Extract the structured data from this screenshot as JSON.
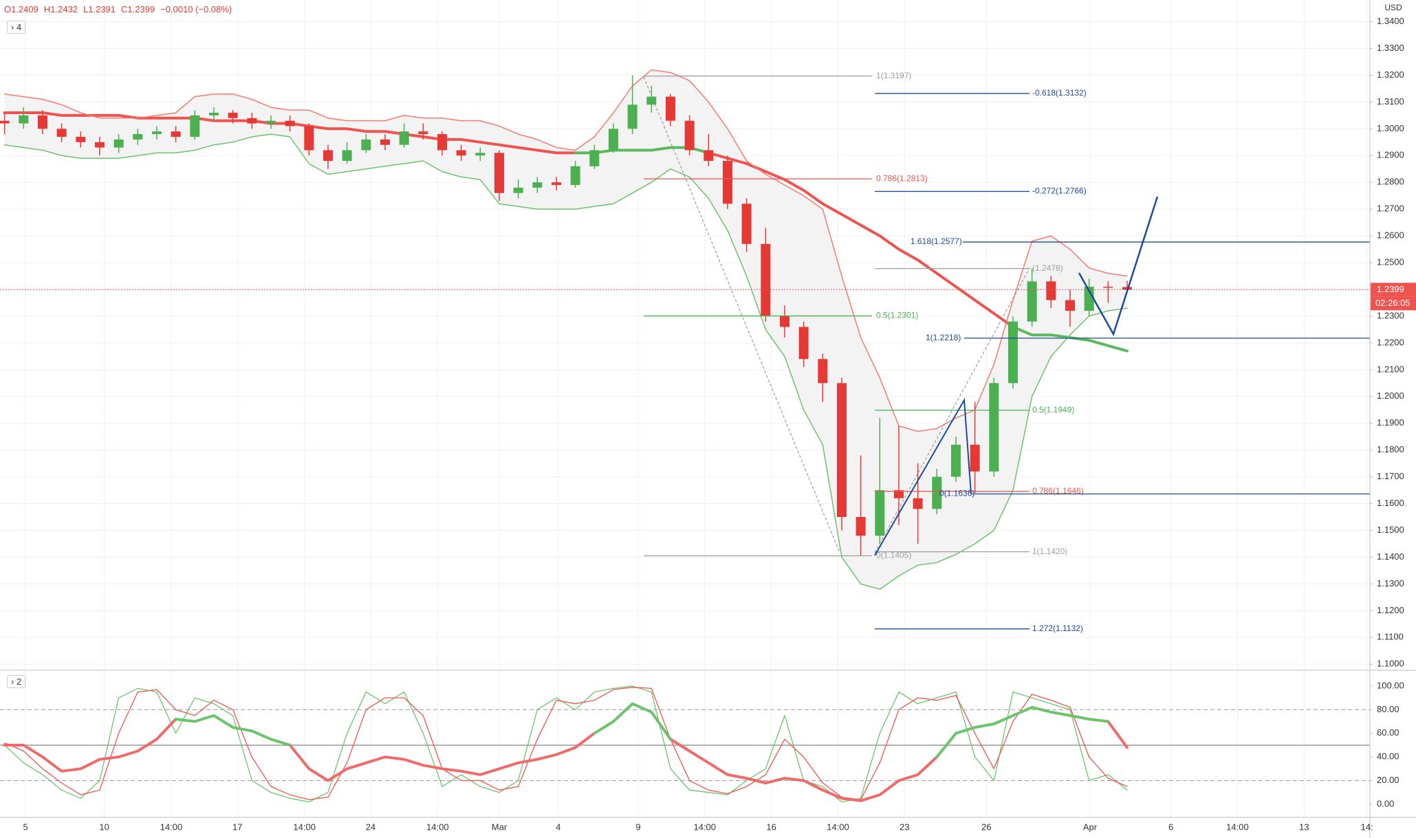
{
  "header": {
    "ohlc": [
      "O1.2409",
      "H1.2432",
      "L1.2391",
      "C1.2399",
      "−0.0010 (−0.08%)"
    ],
    "currency": "USD",
    "main_badge": "4",
    "sub_badge": "2",
    "countdown": "02:26:05"
  },
  "chart_data": [
    {
      "type": "candlestick",
      "xlim": [
        -0.24,
        71.76
      ],
      "xticks": [
        {
          "value": 1.1,
          "label": "5"
        },
        {
          "value": 5.24,
          "label": "10"
        },
        {
          "value": 8.76,
          "label": "14:00"
        },
        {
          "value": 12.24,
          "label": "17"
        },
        {
          "value": 15.76,
          "label": "14:00"
        },
        {
          "value": 19.24,
          "label": "24"
        },
        {
          "value": 22.76,
          "label": "14:00"
        },
        {
          "value": 26,
          "label": "Mar"
        },
        {
          "value": 29.1,
          "label": "4"
        },
        {
          "value": 33.3,
          "label": "9"
        },
        {
          "value": 36.8,
          "label": "14:00"
        },
        {
          "value": 40.3,
          "label": "16"
        },
        {
          "value": 43.8,
          "label": "14:00"
        },
        {
          "value": 47.3,
          "label": "23"
        },
        {
          "value": 51.6,
          "label": "26"
        },
        {
          "value": 57.05,
          "label": "Apr"
        },
        {
          "value": 61.3,
          "label": "6"
        },
        {
          "value": 64.8,
          "label": "14:00"
        },
        {
          "value": 68.3,
          "label": "13"
        },
        {
          "value": 71.6,
          "label": "14:"
        }
      ],
      "ylim": [
        1.098,
        1.3481
      ],
      "yticks": [
        {
          "value": 1.1,
          "label": "1.1000"
        },
        {
          "value": 1.11,
          "label": "1.1100"
        },
        {
          "value": 1.12,
          "label": "1.1200"
        },
        {
          "value": 1.13,
          "label": "1.1300"
        },
        {
          "value": 1.14,
          "label": "1.1400"
        },
        {
          "value": 1.15,
          "label": "1.1500"
        },
        {
          "value": 1.16,
          "label": "1.1600"
        },
        {
          "value": 1.17,
          "label": "1.1700"
        },
        {
          "value": 1.18,
          "label": "1.1800"
        },
        {
          "value": 1.19,
          "label": "1.1900"
        },
        {
          "value": 1.2,
          "label": "1.2000"
        },
        {
          "value": 1.21,
          "label": "1.2100"
        },
        {
          "value": 1.22,
          "label": "1.2200"
        },
        {
          "value": 1.23,
          "label": "1.2300"
        },
        {
          "value": 1.24,
          "label": "1.2400"
        },
        {
          "value": 1.25,
          "label": "1.2500"
        },
        {
          "value": 1.26,
          "label": "1.2600"
        },
        {
          "value": 1.27,
          "label": "1.2700"
        },
        {
          "value": 1.28,
          "label": "1.2800"
        },
        {
          "value": 1.29,
          "label": "1.2900"
        },
        {
          "value": 1.3,
          "label": "1.3000"
        },
        {
          "value": 1.31,
          "label": "1.3100"
        },
        {
          "value": 1.32,
          "label": "1.3200"
        },
        {
          "value": 1.33,
          "label": "1.3300"
        },
        {
          "value": 1.34,
          "label": "1.3400"
        }
      ],
      "grid": true,
      "up_color": "#4caf50",
      "down_color": "#e53935",
      "open": [
        1.303,
        1.302,
        1.305,
        1.3,
        1.297,
        1.295,
        1.293,
        1.296,
        1.298,
        1.299,
        1.297,
        1.305,
        1.306,
        1.304,
        1.302,
        1.303,
        1.301,
        1.292,
        1.288,
        1.292,
        1.296,
        1.294,
        1.299,
        1.298,
        1.292,
        1.29,
        1.291,
        1.276,
        1.278,
        1.28,
        1.279,
        1.286,
        1.292,
        1.3,
        1.309,
        1.312,
        1.303,
        1.292,
        1.288,
        1.272,
        1.257,
        1.23,
        1.226,
        1.214,
        1.205,
        1.155,
        1.148,
        1.165,
        1.162,
        1.158,
        1.17,
        1.182,
        1.172,
        1.205,
        1.228,
        1.243,
        1.236,
        1.232,
        1.241,
        1.2409
      ],
      "high": [
        1.306,
        1.308,
        1.307,
        1.302,
        1.299,
        1.297,
        1.298,
        1.3,
        1.301,
        1.301,
        1.307,
        1.308,
        1.307,
        1.306,
        1.305,
        1.305,
        1.302,
        1.294,
        1.295,
        1.298,
        1.298,
        1.302,
        1.302,
        1.299,
        1.294,
        1.293,
        1.292,
        1.281,
        1.282,
        1.282,
        1.288,
        1.294,
        1.302,
        1.32,
        1.316,
        1.313,
        1.305,
        1.298,
        1.29,
        1.274,
        1.263,
        1.234,
        1.228,
        1.216,
        1.207,
        1.178,
        1.192,
        1.189,
        1.175,
        1.173,
        1.185,
        1.198,
        1.207,
        1.23,
        1.2478,
        1.245,
        1.24,
        1.244,
        1.243,
        1.2432
      ],
      "low": [
        1.298,
        1.3,
        1.298,
        1.295,
        1.293,
        1.29,
        1.291,
        1.294,
        1.296,
        1.295,
        1.296,
        1.303,
        1.302,
        1.3,
        1.3,
        1.299,
        1.29,
        1.285,
        1.287,
        1.291,
        1.292,
        1.293,
        1.296,
        1.29,
        1.288,
        1.288,
        1.273,
        1.274,
        1.276,
        1.277,
        1.278,
        1.285,
        1.291,
        1.298,
        1.306,
        1.301,
        1.29,
        1.286,
        1.27,
        1.254,
        1.228,
        1.222,
        1.211,
        1.198,
        1.15,
        1.1405,
        1.145,
        1.152,
        1.145,
        1.156,
        1.168,
        1.164,
        1.17,
        1.203,
        1.226,
        1.233,
        1.226,
        1.23,
        1.235,
        1.2391
      ],
      "close": [
        1.302,
        1.305,
        1.3,
        1.297,
        1.295,
        1.293,
        1.296,
        1.298,
        1.299,
        1.297,
        1.305,
        1.306,
        1.304,
        1.302,
        1.303,
        1.301,
        1.292,
        1.288,
        1.292,
        1.296,
        1.294,
        1.299,
        1.298,
        1.292,
        1.29,
        1.291,
        1.276,
        1.278,
        1.28,
        1.279,
        1.286,
        1.292,
        1.3,
        1.309,
        1.312,
        1.303,
        1.292,
        1.288,
        1.272,
        1.257,
        1.23,
        1.226,
        1.214,
        1.205,
        1.155,
        1.148,
        1.165,
        1.162,
        1.158,
        1.17,
        1.182,
        1.172,
        1.205,
        1.228,
        1.243,
        1.236,
        1.232,
        1.241,
        1.2409,
        1.2399
      ],
      "band_fill": "#f3f3f3",
      "lines": [
        {
          "color": "#ef5350",
          "width": 4,
          "values": [
            1.306,
            1.306,
            1.306,
            1.305,
            1.305,
            1.305,
            1.305,
            1.304,
            1.304,
            1.304,
            1.304,
            1.303,
            1.303,
            1.303,
            1.302,
            1.302,
            1.301,
            1.3,
            1.3,
            1.299,
            1.299,
            1.298,
            1.297,
            1.296,
            1.296,
            1.295,
            1.294,
            1.293,
            1.292,
            1.291,
            1.291,
            null,
            null,
            null,
            null,
            null,
            null,
            1.291,
            1.289,
            1.287,
            1.284,
            1.281,
            1.277,
            1.272,
            1.268,
            1.264,
            1.26,
            1.255,
            1.251,
            1.246,
            1.241,
            1.236,
            1.231,
            1.226,
            null,
            null,
            null,
            null,
            null,
            null
          ]
        },
        {
          "color": "#5cb85c",
          "width": 4,
          "values": [
            null,
            null,
            null,
            null,
            null,
            null,
            null,
            null,
            null,
            null,
            null,
            null,
            null,
            null,
            null,
            null,
            null,
            null,
            null,
            null,
            null,
            null,
            null,
            null,
            null,
            null,
            null,
            null,
            null,
            null,
            1.291,
            1.291,
            1.292,
            1.292,
            1.292,
            1.293,
            1.293,
            1.291,
            null,
            null,
            null,
            null,
            null,
            null,
            null,
            null,
            null,
            null,
            null,
            null,
            null,
            null,
            null,
            1.226,
            1.223,
            1.223,
            1.222,
            1.221,
            1.219,
            1.217
          ]
        },
        {
          "color": "#f47a72",
          "width": 1.5,
          "values": [
            1.313,
            1.312,
            1.311,
            1.309,
            1.306,
            1.304,
            1.304,
            1.304,
            1.305,
            1.306,
            1.312,
            1.313,
            1.313,
            1.311,
            1.308,
            1.307,
            1.307,
            1.304,
            1.303,
            1.303,
            1.303,
            1.305,
            1.304,
            1.304,
            1.303,
            1.303,
            1.301,
            1.298,
            1.296,
            1.293,
            1.292,
            1.297,
            1.306,
            1.316,
            1.322,
            1.321,
            1.318,
            1.31,
            1.3,
            1.288,
            1.283,
            1.279,
            1.275,
            1.27,
            1.245,
            1.222,
            1.207,
            1.189,
            1.187,
            1.188,
            1.192,
            1.195,
            1.212,
            1.236,
            1.258,
            1.26,
            1.255,
            1.248,
            1.246,
            1.245
          ]
        },
        {
          "color": "#6cc36c",
          "width": 1.5,
          "values": [
            1.294,
            1.293,
            1.292,
            1.29,
            1.289,
            1.289,
            1.289,
            1.29,
            1.291,
            1.291,
            1.292,
            1.294,
            1.295,
            1.297,
            1.298,
            1.297,
            1.287,
            1.283,
            1.284,
            1.285,
            1.286,
            1.287,
            1.288,
            1.284,
            1.282,
            1.281,
            1.272,
            1.271,
            1.27,
            1.27,
            1.27,
            1.271,
            1.272,
            1.276,
            1.28,
            1.285,
            1.282,
            1.274,
            1.262,
            1.245,
            1.225,
            1.215,
            1.195,
            1.182,
            1.14,
            1.13,
            1.128,
            1.133,
            1.137,
            1.138,
            1.141,
            1.145,
            1.15,
            1.165,
            1.2,
            1.215,
            1.223,
            1.23,
            1.232,
            1.233
          ]
        }
      ],
      "fib_levels": [
        {
          "value": 1.3197,
          "label": "1(1.3197)",
          "color": "#9e9e9e"
        },
        {
          "value": 1.2813,
          "label": "0.786(1.2813)",
          "color": "#ef5350"
        },
        {
          "value": 1.2301,
          "label": "0.5(1.2301)",
          "color": "#4caf50"
        },
        {
          "value": 1.1405,
          "label": "0(1.1405)",
          "color": "#9e9e9e"
        },
        {
          "value": 1.3132,
          "label": "-0.618(1.3132)",
          "color": "#1c4a9c"
        },
        {
          "value": 1.2766,
          "label": "-0.272(1.2766)",
          "color": "#1c4a9c"
        },
        {
          "value": 1.2478,
          "label": "(1.2478)",
          "color": "#9e9e9e"
        },
        {
          "value": 1.1949,
          "label": "0.5(1.1949)",
          "color": "#4caf50"
        },
        {
          "value": 1.1646,
          "label": "0.786(1.1646)",
          "color": "#ef5350"
        },
        {
          "value": 1.142,
          "label": "1(1.1420)",
          "color": "#9e9e9e"
        },
        {
          "value": 1.1132,
          "label": "1.272(1.1132)",
          "color": "#1c4a9c"
        },
        {
          "value": 1.2577,
          "label": "1.618(1.2577)",
          "color": "#1c4a9c"
        },
        {
          "value": 1.2218,
          "label": "1(1.2218)",
          "color": "#1c4a9c"
        },
        {
          "value": 1.1636,
          "label": "0(1.1636)",
          "color": "#1c4a9c"
        }
      ],
      "last_price": {
        "value": 1.2399,
        "label": "1.2399"
      },
      "last_price_color": "#ef5350"
    },
    {
      "type": "line",
      "xlim": [
        -0.24,
        71.76
      ],
      "ylim": [
        -10.5,
        111.6
      ],
      "yticks": [
        {
          "value": 0,
          "label": "0.00"
        },
        {
          "value": 20,
          "label": "20.00"
        },
        {
          "value": 40,
          "label": "40.00"
        },
        {
          "value": 60,
          "label": "60.00"
        },
        {
          "value": 80,
          "label": "80.00"
        },
        {
          "value": 100,
          "label": "100.00"
        }
      ],
      "levels": [
        {
          "value": 80,
          "dash": true
        },
        {
          "value": 50,
          "dash": false
        },
        {
          "value": 20,
          "dash": true
        }
      ],
      "series": [
        {
          "color": "#6cc36c",
          "width": 1.3,
          "values": [
            50,
            35,
            25,
            12,
            5,
            20,
            90,
            98,
            95,
            60,
            90,
            85,
            75,
            20,
            10,
            5,
            2,
            10,
            60,
            95,
            85,
            95,
            60,
            15,
            25,
            15,
            10,
            20,
            80,
            90,
            80,
            95,
            98,
            100,
            95,
            30,
            12,
            10,
            8,
            20,
            30,
            75,
            20,
            15,
            2,
            5,
            60,
            95,
            85,
            90,
            95,
            40,
            20,
            95,
            90,
            85,
            80,
            20,
            25,
            12
          ]
        },
        {
          "color": "#ef5350",
          "width": 1.3,
          "values": [
            52,
            45,
            30,
            18,
            8,
            12,
            60,
            95,
            97,
            80,
            75,
            88,
            80,
            40,
            15,
            8,
            4,
            6,
            35,
            80,
            90,
            90,
            75,
            30,
            20,
            20,
            12,
            15,
            55,
            88,
            85,
            88,
            97,
            99,
            98,
            55,
            20,
            12,
            9,
            15,
            25,
            55,
            40,
            18,
            6,
            4,
            35,
            80,
            90,
            88,
            92,
            60,
            30,
            70,
            93,
            88,
            82,
            40,
            22,
            15
          ]
        },
        {
          "color": "#ef6a6a",
          "width": 4,
          "values": [
            50,
            50,
            40,
            28,
            30,
            38,
            40,
            45,
            55,
            72,
            null,
            null,
            null,
            null,
            null,
            50,
            30,
            20,
            30,
            35,
            40,
            38,
            33,
            30,
            28,
            25,
            30,
            35,
            38,
            42,
            48,
            60,
            null,
            null,
            null,
            55,
            45,
            35,
            25,
            22,
            18,
            22,
            20,
            12,
            5,
            3,
            8,
            20,
            25,
            40,
            null,
            null,
            null,
            null,
            null,
            null,
            null,
            null,
            70,
            48
          ]
        },
        {
          "color": "#6cc36c",
          "width": 4,
          "values": [
            null,
            null,
            null,
            null,
            null,
            null,
            null,
            null,
            null,
            72,
            70,
            75,
            65,
            62,
            55,
            50,
            null,
            null,
            null,
            null,
            null,
            null,
            null,
            null,
            null,
            null,
            null,
            null,
            null,
            null,
            null,
            60,
            70,
            85,
            78,
            55,
            null,
            null,
            null,
            null,
            null,
            null,
            null,
            null,
            null,
            null,
            null,
            null,
            null,
            40,
            60,
            65,
            68,
            75,
            82,
            78,
            75,
            72,
            70,
            null
          ]
        }
      ]
    }
  ]
}
